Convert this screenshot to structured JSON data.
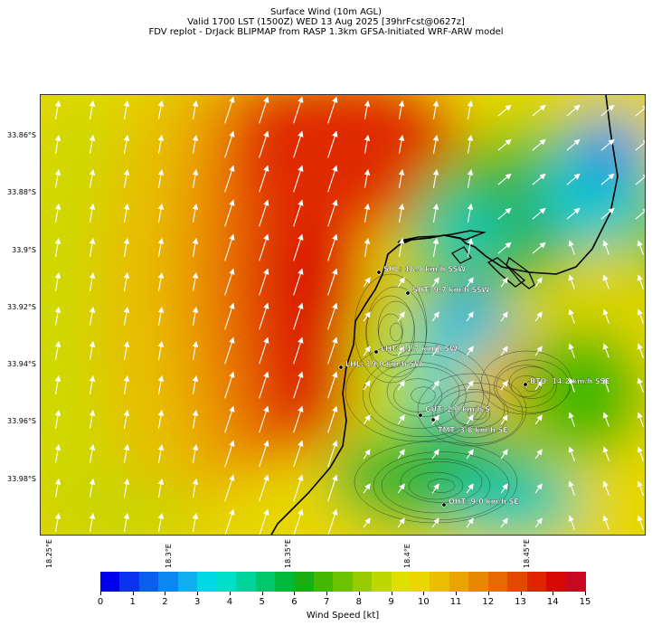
{
  "header": {
    "line1": "Surface Wind (10m AGL)",
    "line2": "Valid 1700 LST (1500Z) WED 13 Aug 2025 [39hrFcst@0627z]",
    "line3": "FDV replot - DrJack BLIPMAP from RASP 1.3km GFSA-Initiated WRF-ARW model"
  },
  "axes": {
    "lat_labels": [
      "33.86°S",
      "33.88°S",
      "33.9°S",
      "33.92°S",
      "33.94°S",
      "33.96°S",
      "33.98°S"
    ],
    "lon_labels": [
      "18.25°E",
      "18.3°E",
      "18.35°E",
      "18.4°E",
      "18.45°E"
    ]
  },
  "stations": [
    {
      "code": "SHL",
      "label": "SHL: 18.9 km/h SSW"
    },
    {
      "code": "SHT",
      "label": "SHT: 9.7 km/h SSW"
    },
    {
      "code": "LHT",
      "label": "LHT: 11.7 km/h SW"
    },
    {
      "code": "LHL",
      "label": "LHL: 19.0 km/h SW"
    },
    {
      "code": "BTO",
      "label": "BTO: 14.2 km/h SSE"
    },
    {
      "code": "GUT",
      "label": "GUT: 2.0 km/h S"
    },
    {
      "code": "TMT",
      "label": "TMT: 3.8 km/h SE"
    },
    {
      "code": "OHT",
      "label": "OHT: 9.0 km/h SE"
    }
  ],
  "colorbar": {
    "label": "Wind Speed [kt]",
    "ticks": [
      "0",
      "1",
      "2",
      "3",
      "4",
      "5",
      "6",
      "7",
      "8",
      "9",
      "10",
      "11",
      "12",
      "13",
      "14",
      "15"
    ],
    "colors": [
      "#0000ee",
      "#0a32f0",
      "#0a5ef0",
      "#0a88f2",
      "#10b0f0",
      "#00d8e6",
      "#00e0c8",
      "#00d49a",
      "#00c86a",
      "#00b83c",
      "#1aae14",
      "#44b800",
      "#6cc400",
      "#96cc00",
      "#bcd800",
      "#e0e000",
      "#ead600",
      "#ecbe00",
      "#eaa400",
      "#e88800",
      "#e66a00",
      "#e44800",
      "#e02400",
      "#d80808",
      "#c80820"
    ]
  }
}
